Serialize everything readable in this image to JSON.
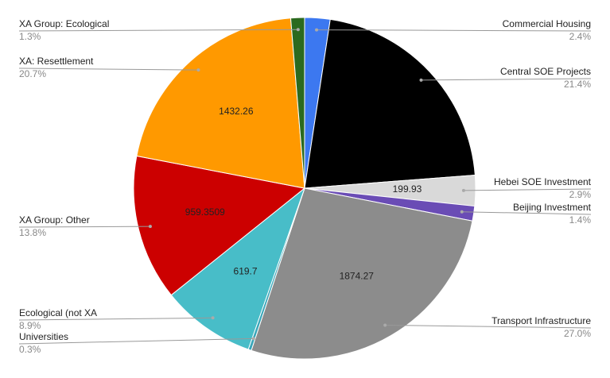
{
  "chart_data": {
    "type": "pie",
    "categories": [
      "Commercial Housing",
      "Central SOE Projects",
      "Hebei SOE Investment",
      "Beijing Investment",
      "Transport Infrastructure",
      "Universities",
      "Ecological  (not XA",
      "XA Group: Other",
      "XA: Resettlement",
      "XA Group: Ecological"
    ],
    "values": [
      2.4,
      21.4,
      2.9,
      1.4,
      27.0,
      0.3,
      8.9,
      13.8,
      20.7,
      1.3
    ],
    "value_labels": [
      "2.4%",
      "21.4%",
      "2.9%",
      "1.4%",
      "27.0%",
      "0.3%",
      "8.9%",
      "13.8%",
      "20.7%",
      "1.3%"
    ],
    "amounts": [
      null,
      null,
      "199.93",
      null,
      "1874.27",
      null,
      "619.7",
      "959.3509",
      "1432.26",
      null
    ],
    "colors": [
      "#3c78f0",
      "#000000",
      "#d9d9d9",
      "#6a4cb5",
      "#8c8c8c",
      "#3aa6b9",
      "#48bdc8",
      "#cc0000",
      "#ff9900",
      "#2b6a1f"
    ]
  }
}
